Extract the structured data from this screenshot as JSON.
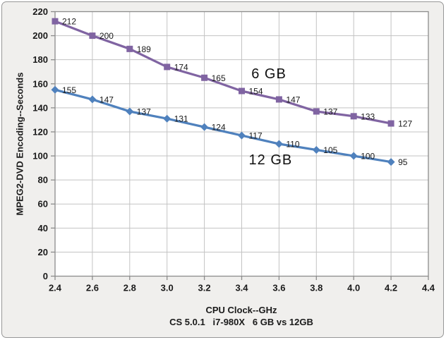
{
  "chart_data": {
    "type": "line",
    "title": "",
    "xlabel": "CPU Clock--GHz",
    "ylabel": "MPEG2-DVD Encoding--Seconds",
    "subtitle": "CS 5.0.1   i7-980X   6 GB vs 12GB",
    "x": [
      2.4,
      2.6,
      2.8,
      3.0,
      3.2,
      3.4,
      3.6,
      3.8,
      4.0,
      4.2
    ],
    "xlim": [
      2.4,
      4.4
    ],
    "ylim": [
      0,
      220
    ],
    "x_ticks": [
      2.4,
      2.6,
      2.8,
      3.0,
      3.2,
      3.4,
      3.6,
      3.8,
      4.0,
      4.2,
      4.4
    ],
    "x_tick_labels": [
      "2.4",
      "2.6",
      "2.8",
      "3.0",
      "3.2",
      "3.4",
      "3.6",
      "3.8",
      "4.0",
      "4.2",
      "4.4"
    ],
    "y_ticks": [
      0,
      20,
      40,
      60,
      80,
      100,
      120,
      140,
      160,
      180,
      200,
      220
    ],
    "y_tick_labels": [
      "0",
      "20",
      "40",
      "60",
      "80",
      "100",
      "120",
      "140",
      "160",
      "180",
      "200",
      "220"
    ],
    "grid": true,
    "legend_position": "none",
    "series": [
      {
        "name": "6 GB",
        "marker": "square",
        "color": "#8064A2",
        "values": [
          212,
          200,
          189,
          174,
          165,
          154,
          147,
          137,
          133,
          127
        ]
      },
      {
        "name": "12 GB",
        "marker": "diamond",
        "color": "#4F81BD",
        "values": [
          155,
          147,
          137,
          131,
          124,
          117,
          110,
          105,
          100,
          95
        ]
      }
    ],
    "annotations": [
      {
        "text": "6 GB",
        "x": 3.452,
        "y": 165
      },
      {
        "text": "12 GB",
        "x": 3.438,
        "y": 93
      }
    ]
  },
  "colors": {
    "background": "#F0EFED",
    "plot_background": "#FFFFFF",
    "gridline": "#C3C3C3",
    "axis": "#8C8C8C",
    "frame_border": "#979797",
    "tick_text": "#1A1A1A",
    "data_label_text": "#1A1A1A",
    "series_6gb": "#8064A2",
    "series_12gb": "#4F81BD"
  }
}
